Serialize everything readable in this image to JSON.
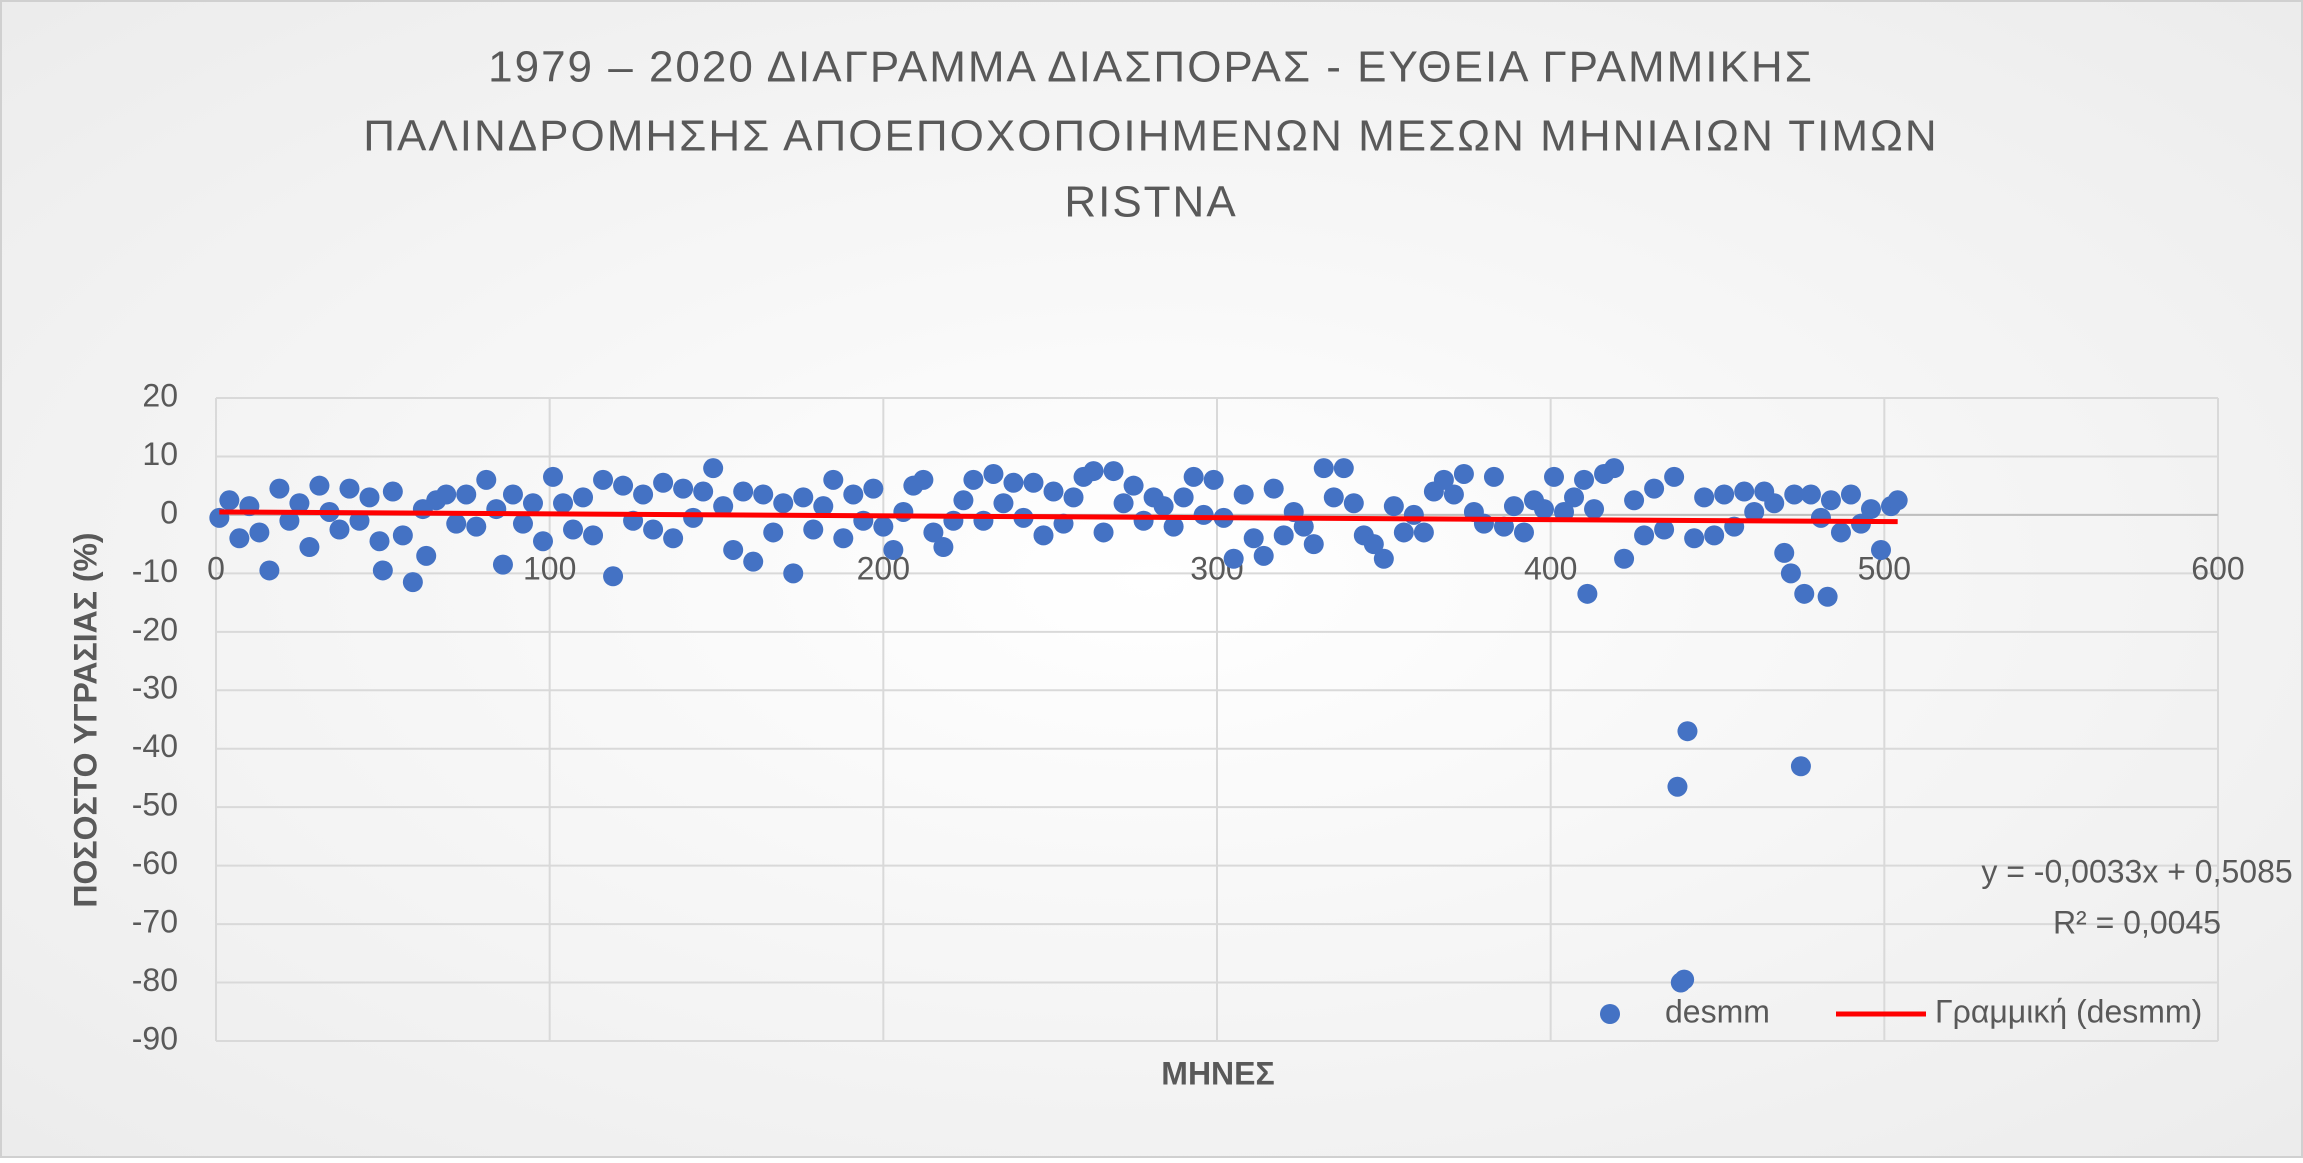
{
  "chart_data": {
    "type": "scatter",
    "title": "1979 – 2020 ΔΙΑΓΡΑΜΜΑ ΔΙΑΣΠΟΡΑΣ - ΕΥΘΕΙΑ ΓΡΑΜΜΙΚΗΣ",
    "subtitle": [
      "ΠΑΛΙΝΔΡΟΜΗΣΗΣ ΑΠΟΕΠΟΧΟΠΟΙΗΜΕΝΩΝ ΜΕΣΩΝ ΜΗΝΙΑΙΩΝ ΤΙΜΩΝ",
      "RISTNA"
    ],
    "x_label": "ΜΗΝΕΣ",
    "y_label": "ΠΟΣΟΣΤΟ ΥΓΡΑΣΙΑΣ (%)",
    "xlim": [
      0,
      600
    ],
    "xticks": [
      0,
      100,
      200,
      300,
      400,
      500,
      600
    ],
    "ylim": [
      -90,
      20
    ],
    "yticks": [
      -90,
      -80,
      -70,
      -60,
      -50,
      -40,
      -30,
      -20,
      -10,
      0,
      10,
      20
    ],
    "grid": true,
    "legend": "bottom-right",
    "series": [
      {
        "name": "desmm",
        "color": "#4472c4",
        "x": [
          1,
          4,
          7,
          10,
          13,
          16,
          19,
          22,
          25,
          28,
          31,
          34,
          37,
          40,
          43,
          46,
          49,
          50,
          53,
          56,
          59,
          62,
          63,
          66,
          69,
          72,
          75,
          78,
          81,
          84,
          86,
          89,
          92,
          95,
          98,
          101,
          104,
          107,
          110,
          113,
          116,
          119,
          122,
          125,
          128,
          131,
          134,
          137,
          140,
          143,
          146,
          149,
          152,
          155,
          158,
          161,
          164,
          167,
          170,
          173,
          176,
          179,
          182,
          185,
          188,
          191,
          194,
          197,
          200,
          203,
          206,
          209,
          212,
          215,
          218,
          221,
          224,
          227,
          230,
          233,
          236,
          239,
          242,
          245,
          248,
          251,
          254,
          257,
          260,
          263,
          266,
          269,
          272,
          275,
          278,
          281,
          284,
          287,
          290,
          293,
          296,
          299,
          302,
          305,
          308,
          311,
          314,
          317,
          320,
          323,
          326,
          329,
          332,
          335,
          338,
          341,
          344,
          347,
          350,
          353,
          356,
          359,
          362,
          365,
          368,
          371,
          374,
          377,
          380,
          383,
          386,
          389,
          392,
          395,
          398,
          401,
          404,
          407,
          410,
          411,
          413,
          416,
          419,
          422,
          425,
          428,
          431,
          434,
          437,
          438,
          439,
          440,
          441,
          443,
          446,
          449,
          452,
          455,
          458,
          461,
          464,
          467,
          470,
          472,
          473,
          475,
          476,
          478,
          481,
          483,
          484,
          487,
          490,
          493,
          496,
          499,
          502,
          504
        ],
        "values": [
          -0.5,
          2.5,
          -4,
          1.5,
          -3,
          -9.5,
          4.5,
          -1,
          2,
          -5.5,
          5,
          0.5,
          -2.5,
          4.5,
          -1,
          3,
          -4.5,
          -9.5,
          4,
          -3.5,
          -11.5,
          1,
          -7,
          2.5,
          3.5,
          -1.5,
          3.5,
          -2,
          6,
          1,
          -8.5,
          3.5,
          -1.5,
          2,
          -4.5,
          6.5,
          2,
          -2.5,
          3,
          -3.5,
          6,
          -10.5,
          5,
          -1,
          3.5,
          -2.5,
          5.5,
          -4,
          4.5,
          -0.5,
          4,
          8,
          1.5,
          -6,
          4,
          -8,
          3.5,
          -3,
          2,
          -10,
          3,
          -2.5,
          1.5,
          6,
          -4,
          3.5,
          -1,
          4.5,
          -2,
          -6,
          0.5,
          5,
          6,
          -3,
          -5.5,
          -1,
          2.5,
          6,
          -1,
          7,
          2,
          5.5,
          -0.5,
          5.5,
          -3.5,
          4,
          -1.5,
          3,
          6.5,
          7.5,
          -3,
          7.5,
          2,
          5,
          -1,
          3,
          1.5,
          -2,
          3,
          6.5,
          0,
          6,
          -0.5,
          -7.5,
          3.5,
          -4,
          -7,
          4.5,
          -3.5,
          0.5,
          -2,
          -5,
          8,
          3,
          8,
          2,
          -3.5,
          -5,
          -7.5,
          1.5,
          -3,
          0,
          -3,
          4,
          6,
          3.5,
          7,
          0.5,
          -1.5,
          6.5,
          -2,
          1.5,
          -3,
          2.5,
          1,
          6.5,
          0.5,
          3,
          6,
          -13.5,
          1,
          7,
          8,
          -7.5,
          2.5,
          -3.5,
          4.5,
          -2.5,
          6.5,
          -46.5,
          -80,
          -79.5,
          -37,
          -4,
          3,
          -3.5,
          3.5,
          -2,
          4,
          0.5,
          4,
          2,
          -6.5,
          -10,
          3.5,
          -43,
          -13.5,
          3.5,
          -0.5,
          -14,
          2.5,
          -3,
          3.5,
          -1.5,
          1,
          -6,
          1.5,
          2.5
        ]
      }
    ],
    "trendline": {
      "name": "Γραμμική (desmm)",
      "color": "#ff0000",
      "slope": -0.0033,
      "intercept": 0.5085,
      "x_range": [
        1,
        504
      ],
      "equation": "y = -0,0033x + 0,5085",
      "r2_label": "R² = 0,0045"
    }
  }
}
